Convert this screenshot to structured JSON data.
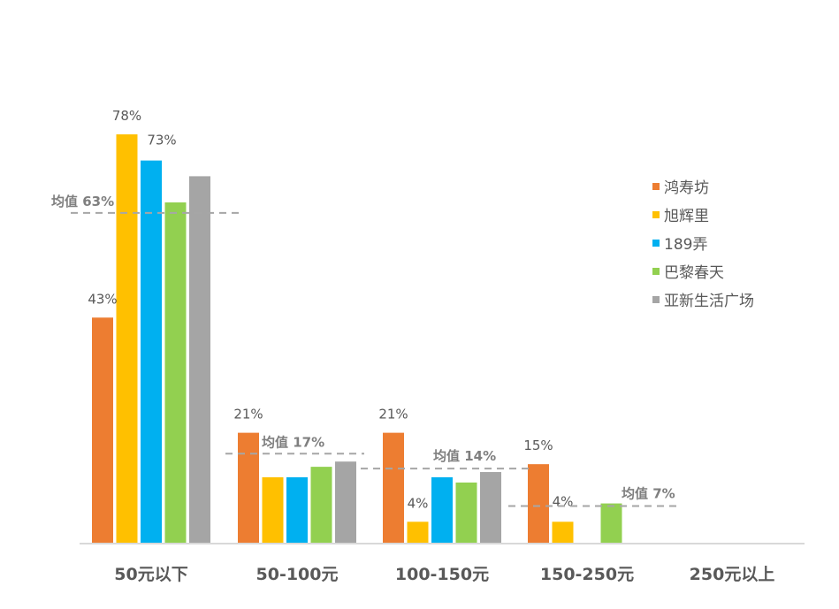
{
  "chart_data": {
    "type": "bar",
    "title": "",
    "xlabel": "",
    "ylabel": "",
    "ylim": [
      0,
      80
    ],
    "grid": false,
    "legend_position": "right",
    "categories": [
      "50元以下",
      "50-100元",
      "100-150元",
      "150-250元",
      "250元以上"
    ],
    "series": [
      {
        "name": "鸿寿坊",
        "color": "#ED7D31",
        "values": [
          43,
          21,
          21,
          15,
          0
        ]
      },
      {
        "name": "旭辉里",
        "color": "#FFC000",
        "values": [
          78,
          12.5,
          4,
          4,
          0
        ]
      },
      {
        "name": "189弄",
        "color": "#00B0F0",
        "values": [
          73,
          12.5,
          12.5,
          0,
          0
        ]
      },
      {
        "name": "巴黎春天",
        "color": "#92D050",
        "values": [
          65,
          14.5,
          11.5,
          7.5,
          0
        ]
      },
      {
        "name": "亚新生活广场",
        "color": "#A5A5A5",
        "values": [
          70,
          15.5,
          13.5,
          0,
          0
        ]
      }
    ],
    "data_labels": [
      {
        "series": 0,
        "category": 0,
        "text": "43%"
      },
      {
        "series": 1,
        "category": 0,
        "text": "78%"
      },
      {
        "series": 2,
        "category": 0,
        "text": "73%"
      },
      {
        "series": 0,
        "category": 1,
        "text": "21%"
      },
      {
        "series": 0,
        "category": 2,
        "text": "21%"
      },
      {
        "series": 1,
        "category": 2,
        "text": "4%"
      },
      {
        "series": 0,
        "category": 3,
        "text": "15%"
      },
      {
        "series": 1,
        "category": 3,
        "text": "4%"
      }
    ],
    "means": [
      {
        "category": 0,
        "value": 63,
        "label": "均值 63%"
      },
      {
        "category": 1,
        "value": 17,
        "label": "均值 17%"
      },
      {
        "category": 2,
        "value": 14,
        "label": "均值 14%"
      },
      {
        "category": 3,
        "value": 7,
        "label": "均值 7%"
      }
    ]
  }
}
